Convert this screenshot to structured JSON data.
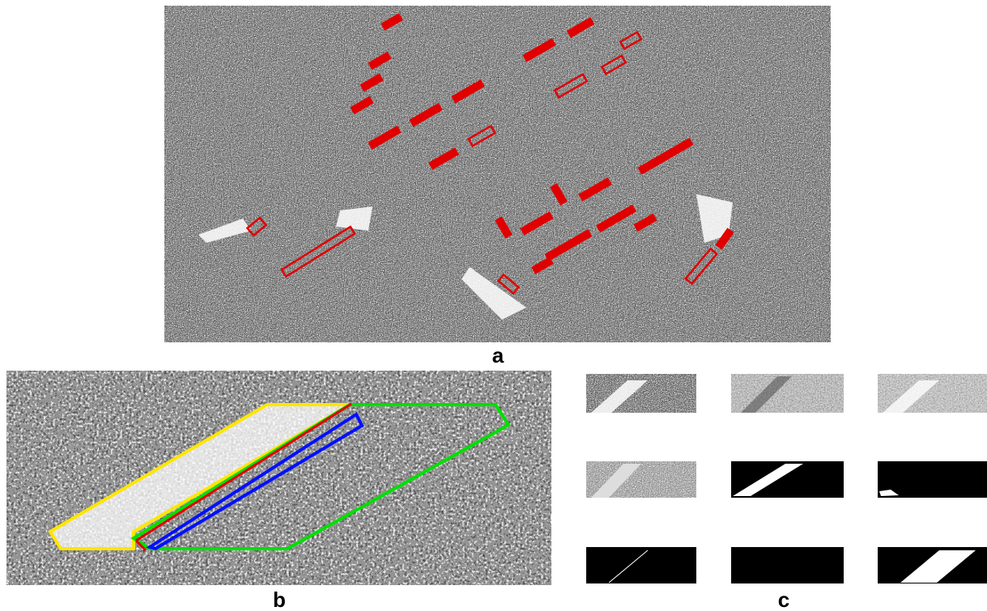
{
  "panels": {
    "a": {
      "label": "a"
    },
    "b": {
      "label": "b"
    },
    "c": {
      "label": "c"
    }
  }
}
